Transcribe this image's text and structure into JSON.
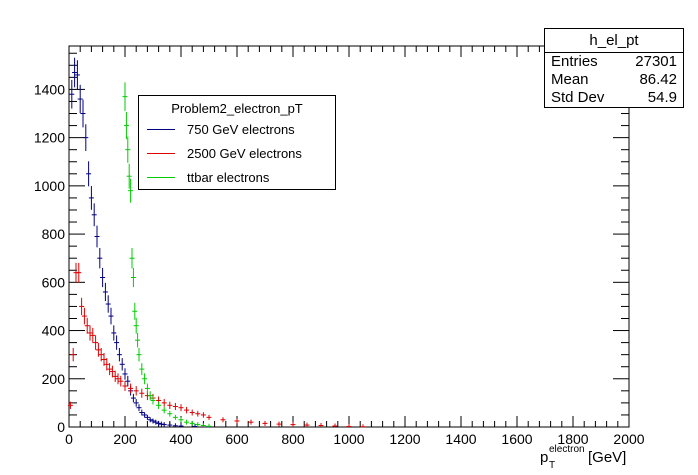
{
  "chart_data": {
    "type": "line",
    "histogram_name": "h_el_pt",
    "legend_title": "Problem2_electron_pT",
    "xlabel_main": "p",
    "xlabel_sub": "T",
    "xlabel_sup": "electron",
    "xlabel_unit": "[GeV]",
    "xlim": [
      0,
      2000
    ],
    "ylim": [
      0,
      1580
    ],
    "x_ticks": [
      "0",
      "200",
      "400",
      "600",
      "800",
      "1000",
      "1200",
      "1400",
      "1600",
      "1800",
      "2000"
    ],
    "y_ticks": [
      "0",
      "200",
      "400",
      "600",
      "800",
      "1000",
      "1200",
      "1400"
    ],
    "stats": [
      {
        "label": "Entries",
        "value": "27301"
      },
      {
        "label": "Mean",
        "value": "86.42"
      },
      {
        "label": "Std Dev",
        "value": "54.9"
      }
    ],
    "series": [
      {
        "name": "750 GeV electrons",
        "color": "#000080",
        "x": [
          10,
          20,
          30,
          40,
          50,
          60,
          70,
          80,
          90,
          100,
          110,
          120,
          130,
          140,
          150,
          160,
          170,
          180,
          190,
          200,
          210,
          220,
          230,
          240,
          250,
          260,
          270,
          280,
          290,
          300,
          310,
          320,
          330,
          340,
          360,
          380,
          400,
          450,
          500
        ],
        "y": [
          1380,
          1470,
          1460,
          1360,
          1300,
          1200,
          1050,
          950,
          880,
          790,
          700,
          620,
          560,
          510,
          460,
          390,
          350,
          300,
          260,
          220,
          190,
          150,
          120,
          100,
          80,
          60,
          50,
          40,
          30,
          25,
          20,
          15,
          12,
          10,
          8,
          5,
          4,
          2,
          1
        ]
      },
      {
        "name": "2500 GeV electrons",
        "color": "#dd0000",
        "x": [
          5,
          15,
          25,
          35,
          45,
          55,
          65,
          75,
          85,
          95,
          105,
          115,
          125,
          135,
          145,
          155,
          165,
          175,
          185,
          200,
          220,
          240,
          260,
          280,
          300,
          320,
          340,
          360,
          380,
          400,
          420,
          440,
          460,
          480,
          500,
          550,
          600,
          650,
          700,
          750,
          800,
          850,
          900,
          950,
          1000,
          1050
        ],
        "y": [
          90,
          300,
          640,
          640,
          500,
          460,
          420,
          390,
          380,
          350,
          320,
          300,
          280,
          260,
          240,
          230,
          210,
          200,
          190,
          170,
          160,
          150,
          140,
          130,
          120,
          110,
          100,
          90,
          85,
          80,
          70,
          60,
          55,
          50,
          40,
          30,
          25,
          20,
          15,
          12,
          10,
          8,
          6,
          4,
          2,
          1
        ]
      },
      {
        "name": "ttbar electrons",
        "color": "#00cc00",
        "x": [
          200,
          205,
          210,
          215,
          220,
          225,
          230,
          235,
          240,
          245,
          250,
          260,
          270,
          280,
          290,
          300,
          320,
          340,
          360,
          380,
          400,
          420,
          440,
          460,
          480,
          500
        ],
        "y": [
          1370,
          1250,
          1150,
          1040,
          980,
          700,
          620,
          480,
          420,
          360,
          300,
          240,
          200,
          160,
          130,
          110,
          90,
          70,
          55,
          40,
          30,
          20,
          15,
          10,
          6,
          3
        ]
      }
    ]
  }
}
